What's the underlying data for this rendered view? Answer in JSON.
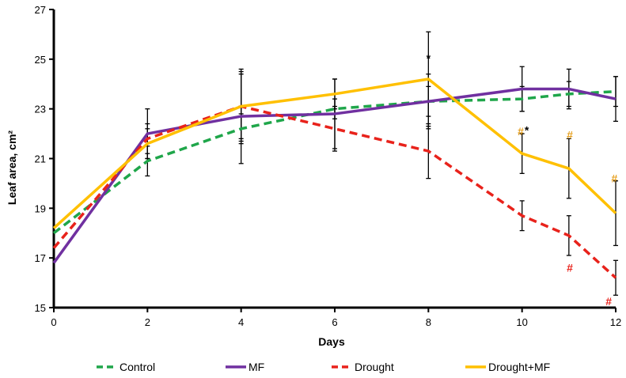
{
  "chart_data": {
    "type": "line",
    "title": "",
    "xlabel": "Days",
    "ylabel": "Leaf area, cm²",
    "x": [
      0,
      2,
      4,
      6,
      8,
      10,
      11,
      12
    ],
    "xticks": [
      "0",
      "2",
      "4",
      "6",
      "8",
      "10",
      "12"
    ],
    "xlim": [
      0,
      12
    ],
    "yticks": [
      "15",
      "17",
      "19",
      "21",
      "23",
      "25",
      "27"
    ],
    "ylim": [
      15,
      27
    ],
    "grid": false,
    "legend_position": "bottom",
    "series": [
      {
        "name": "Control",
        "color": "#1fa64a",
        "dash": true,
        "values": [
          18.0,
          20.9,
          22.2,
          23.0,
          23.3,
          23.4,
          23.6,
          23.7
        ],
        "err": [
          0,
          0.6,
          0.6,
          0.4,
          0.6,
          0.5,
          0.5,
          0.6
        ]
      },
      {
        "name": "MF",
        "color": "#7030a0",
        "dash": false,
        "values": [
          16.8,
          22.0,
          22.7,
          22.8,
          23.3,
          23.8,
          23.8,
          23.4
        ],
        "err": [
          0,
          1.0,
          1.9,
          1.4,
          1.1,
          0.9,
          0.8,
          0.9
        ]
      },
      {
        "name": "Drought",
        "color": "#e8221b",
        "dash": true,
        "values": [
          17.4,
          21.8,
          23.1,
          22.2,
          21.3,
          18.7,
          17.9,
          16.2
        ],
        "err": [
          0,
          0.6,
          1.4,
          0.9,
          1.1,
          0.6,
          0.8,
          0.7
        ]
      },
      {
        "name": "Drought+MF",
        "color": "#ffc000",
        "dash": false,
        "values": [
          18.2,
          21.6,
          23.1,
          23.6,
          24.2,
          21.2,
          20.6,
          18.8
        ],
        "err": [
          0,
          0.6,
          1.3,
          0.6,
          1.9,
          0.8,
          1.2,
          1.3
        ]
      }
    ],
    "annotations": [
      {
        "text": "*",
        "x": 8,
        "y": 25.05,
        "color": "#000000"
      },
      {
        "text": "#",
        "x": 9.97,
        "y": 22.1,
        "color": "#e6a020"
      },
      {
        "text": "*",
        "x": 10.1,
        "y": 22.15,
        "color": "#000000"
      },
      {
        "text": "#",
        "x": 11.02,
        "y": 21.95,
        "color": "#e6a020"
      },
      {
        "text": "#",
        "x": 11.97,
        "y": 20.2,
        "color": "#e6a020"
      },
      {
        "text": "#",
        "x": 11.02,
        "y": 16.6,
        "color": "#e8221b"
      },
      {
        "text": "#",
        "x": 11.85,
        "y": 15.25,
        "color": "#e8221b"
      }
    ]
  }
}
